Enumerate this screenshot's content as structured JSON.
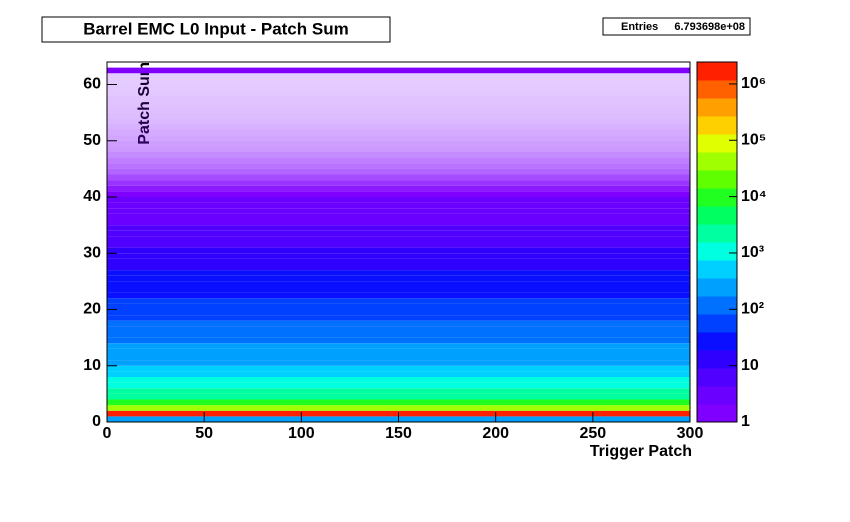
{
  "chart_data": {
    "type": "heatmap",
    "title": "Barrel EMC L0 Input - Patch Sum",
    "stats_label": "Entries",
    "stats_value": "6.793698e+08",
    "x_label": "Trigger Patch",
    "y_label": "Patch Sum",
    "xlim": [
      0,
      300
    ],
    "xticks": [
      0,
      50,
      100,
      150,
      200,
      250,
      300
    ],
    "ylim": [
      0,
      64
    ],
    "yticks": [
      0,
      10,
      20,
      30,
      40,
      50,
      60
    ],
    "y": [
      0,
      1,
      2,
      3,
      4,
      5,
      6,
      7,
      8,
      9,
      10,
      11,
      12,
      13,
      14,
      15,
      16,
      17,
      18,
      19,
      20,
      21,
      22,
      23,
      24,
      25,
      26,
      27,
      28,
      29,
      30,
      31,
      32,
      33,
      34,
      35,
      36,
      37,
      38,
      39,
      40,
      41,
      42,
      43,
      44,
      45,
      46,
      47,
      48,
      49,
      50,
      51,
      52,
      53,
      54,
      55,
      56,
      57,
      58,
      59,
      60,
      61,
      62,
      63
    ],
    "values": [
      300,
      1500000,
      30000,
      8000,
      3000,
      1800,
      1200,
      800,
      600,
      450,
      350,
      280,
      220,
      180,
      150,
      120,
      100,
      85,
      70,
      60,
      50,
      42,
      36,
      30,
      26,
      22,
      19,
      16,
      14,
      12,
      10,
      8,
      7,
      6,
      5,
      4,
      3.5,
      3,
      2.5,
      2.2,
      2,
      0.9,
      0.8,
      0.7,
      0.6,
      0.55,
      0.5,
      0.45,
      0.4,
      0.38,
      0.35,
      0.33,
      0.3,
      0.28,
      0.26,
      0.25,
      0.24,
      0.23,
      0.22,
      0.21,
      0.2,
      0.2,
      1.5,
      0
    ],
    "zlim": [
      1,
      2450000
    ],
    "log_z": true,
    "zticks": [
      1,
      10,
      {
        "value": 100,
        "label": "10²"
      },
      {
        "value": 1000,
        "label": "10³"
      },
      {
        "value": 10000,
        "label": "10⁴"
      },
      {
        "value": 100000,
        "label": "10⁵"
      },
      {
        "value": 1000000,
        "label": "10⁶"
      }
    ],
    "palette": [
      "#7f00ff",
      "#6a00ff",
      "#5000ff",
      "#3000ff",
      "#0a10ff",
      "#0040ff",
      "#0070ff",
      "#00a0ff",
      "#00d0ff",
      "#00ffe0",
      "#00ffa0",
      "#00ff60",
      "#20ff20",
      "#60ff00",
      "#a0ff00",
      "#e0ff00",
      "#ffd000",
      "#ffa000",
      "#ff6000",
      "#ff2000"
    ]
  }
}
